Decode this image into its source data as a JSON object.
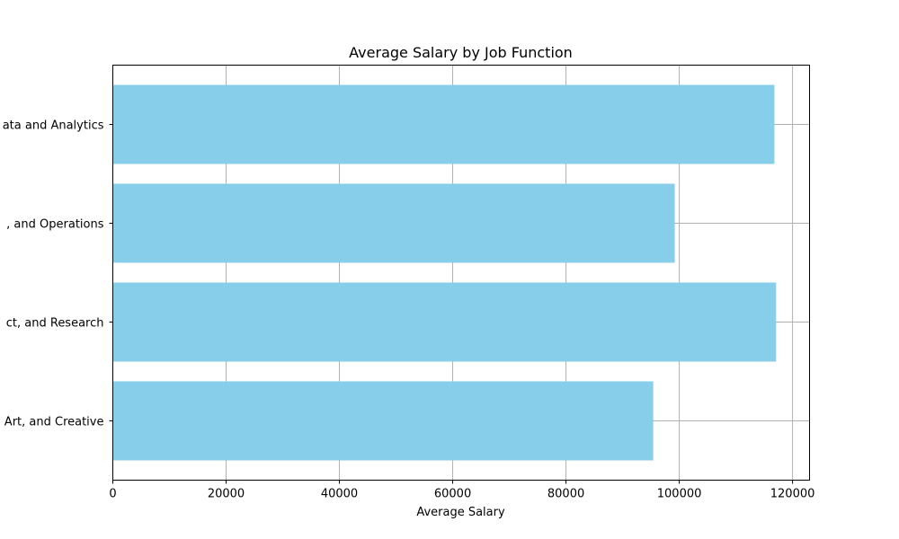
{
  "chart_data": {
    "type": "bar",
    "orientation": "horizontal",
    "title": "Average Salary by Job Function",
    "xlabel": "Average Salary",
    "ylabel": "",
    "categories": [
      "Data and Analytics",
      "Management, Strategy, and Operations",
      "Technology, Product, and Research",
      "Design, Art, and Creative"
    ],
    "tick_labels_visible": [
      "ata and Analytics",
      ", and Operations",
      "ct, and Research",
      "Art, and Creative"
    ],
    "values": [
      116800,
      99200,
      117100,
      95400
    ],
    "xlim": [
      0,
      123000
    ],
    "xticks": [
      0,
      20000,
      40000,
      60000,
      80000,
      100000,
      120000
    ],
    "grid": true,
    "bar_color": "#87ceeb",
    "grid_color": "#b0b0b0"
  }
}
